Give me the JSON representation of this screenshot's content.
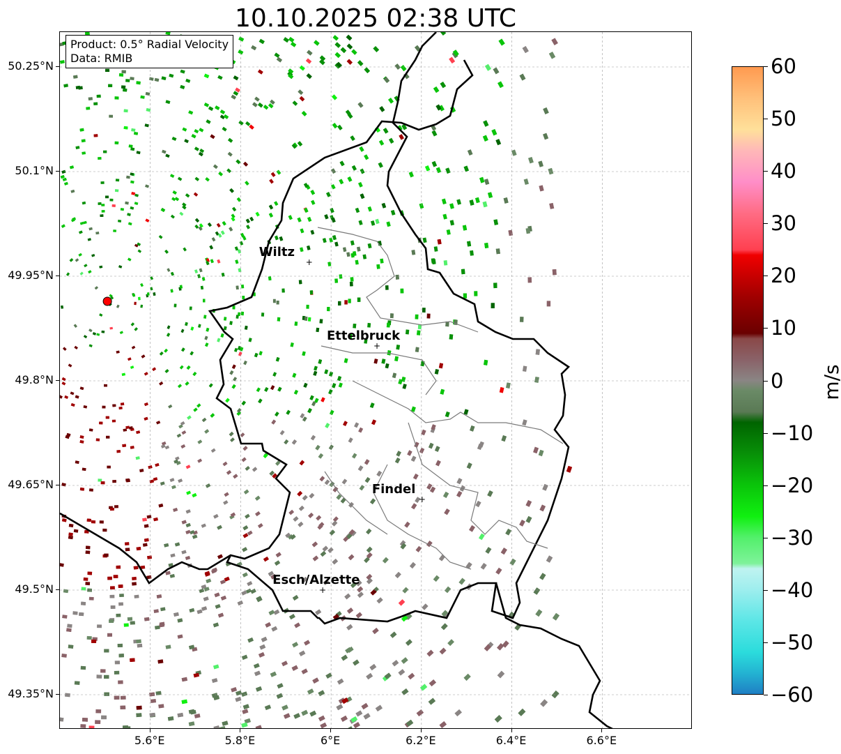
{
  "title": "10.10.2025 02:38 UTC",
  "info": {
    "product": "Product: 0.5° Radial Velocity",
    "source": "Data: RMIB"
  },
  "axes": {
    "lat_ticks": [
      "50.25°N",
      "50.1°N",
      "49.95°N",
      "49.8°N",
      "49.65°N",
      "49.5°N",
      "49.35°N"
    ],
    "lon_ticks": [
      "5.6°E",
      "5.8°E",
      "6°E",
      "6.2°E",
      "6.4°E",
      "6.6°E"
    ],
    "lon_range": [
      5.4,
      6.8
    ],
    "lat_range": [
      49.3,
      50.3
    ]
  },
  "cities": [
    {
      "name": "Wiltz",
      "lon": 5.95,
      "lat": 49.97
    },
    {
      "name": "Ettelbruck",
      "lon": 6.1,
      "lat": 49.85
    },
    {
      "name": "Findel",
      "lon": 6.2,
      "lat": 49.63
    },
    {
      "name": "Esch/Alzette",
      "lon": 5.98,
      "lat": 49.5
    }
  ],
  "radar_site": {
    "lon": 5.505,
    "lat": 49.914,
    "color": "#ff0000"
  },
  "colorbar": {
    "unit": "m/s",
    "min": -60,
    "max": 60,
    "ticks": [
      "60",
      "50",
      "40",
      "30",
      "20",
      "10",
      "0",
      "−10",
      "−20",
      "−30",
      "−40",
      "−50",
      "−60"
    ],
    "stops": [
      {
        "v": -60,
        "c": "#1f7fc4"
      },
      {
        "v": -56,
        "c": "#23b3d2"
      },
      {
        "v": -52,
        "c": "#2bdcdc"
      },
      {
        "v": -46,
        "c": "#5ce6e6"
      },
      {
        "v": -40,
        "c": "#9eeeee"
      },
      {
        "v": -36,
        "c": "#bff3f0"
      },
      {
        "v": -35,
        "c": "#7ef29a"
      },
      {
        "v": -30,
        "c": "#52f06a"
      },
      {
        "v": -26,
        "c": "#10f010"
      },
      {
        "v": -20,
        "c": "#0ac40a"
      },
      {
        "v": -14,
        "c": "#089008"
      },
      {
        "v": -8,
        "c": "#006400"
      },
      {
        "v": -6,
        "c": "#5a7a55"
      },
      {
        "v": -2,
        "c": "#6a8a66"
      },
      {
        "v": 0,
        "c": "#8a8584"
      },
      {
        "v": 4,
        "c": "#8a6268"
      },
      {
        "v": 8,
        "c": "#8a4848"
      },
      {
        "v": 9,
        "c": "#6a0000"
      },
      {
        "v": 16,
        "c": "#a00000"
      },
      {
        "v": 24,
        "c": "#f00000"
      },
      {
        "v": 25,
        "c": "#ff4050"
      },
      {
        "v": 32,
        "c": "#ff6c84"
      },
      {
        "v": 38,
        "c": "#ff8ec8"
      },
      {
        "v": 44,
        "c": "#ffb8b8"
      },
      {
        "v": 48,
        "c": "#ffe09a"
      },
      {
        "v": 54,
        "c": "#ffc07a"
      },
      {
        "v": 60,
        "c": "#ff9a50"
      }
    ]
  }
}
